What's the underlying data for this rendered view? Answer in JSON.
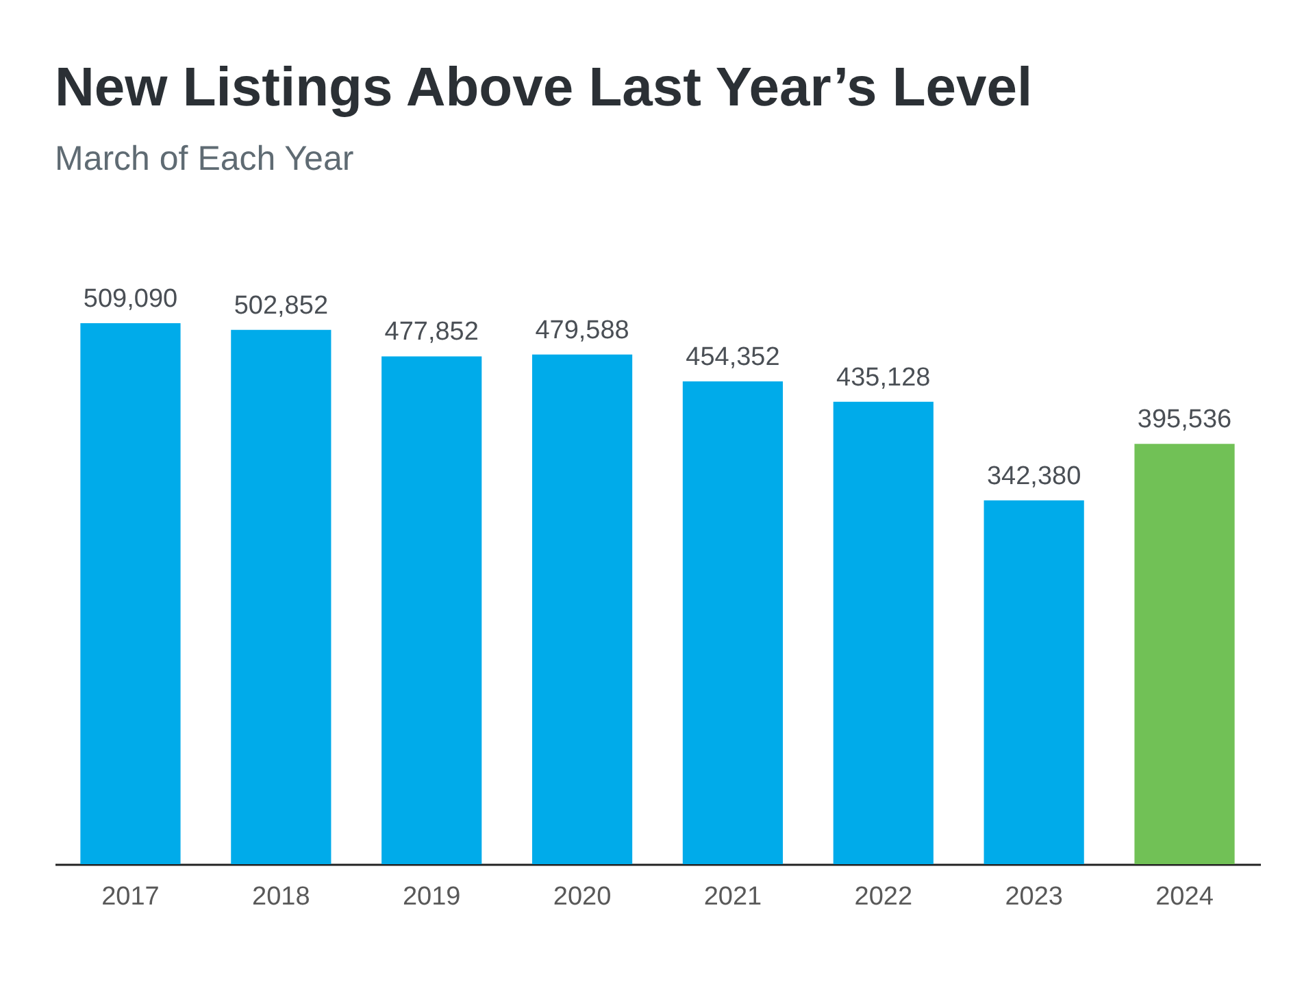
{
  "chart_data": {
    "type": "bar",
    "title": "New Listings Above Last Year’s Level",
    "subtitle": "March of Each Year",
    "categories": [
      "2017",
      "2018",
      "2019",
      "2020",
      "2021",
      "2022",
      "2023",
      "2024"
    ],
    "values": [
      509090,
      502852,
      477852,
      479588,
      454352,
      435128,
      342380,
      395536
    ],
    "colors": [
      "#00abea",
      "#00abea",
      "#00abea",
      "#00abea",
      "#00abea",
      "#00abea",
      "#00abea",
      "#71c156"
    ],
    "value_labels": [
      "509,090",
      "502,852",
      "477,852",
      "479,588",
      "454,352",
      "435,128",
      "342,380",
      "395,536"
    ]
  }
}
